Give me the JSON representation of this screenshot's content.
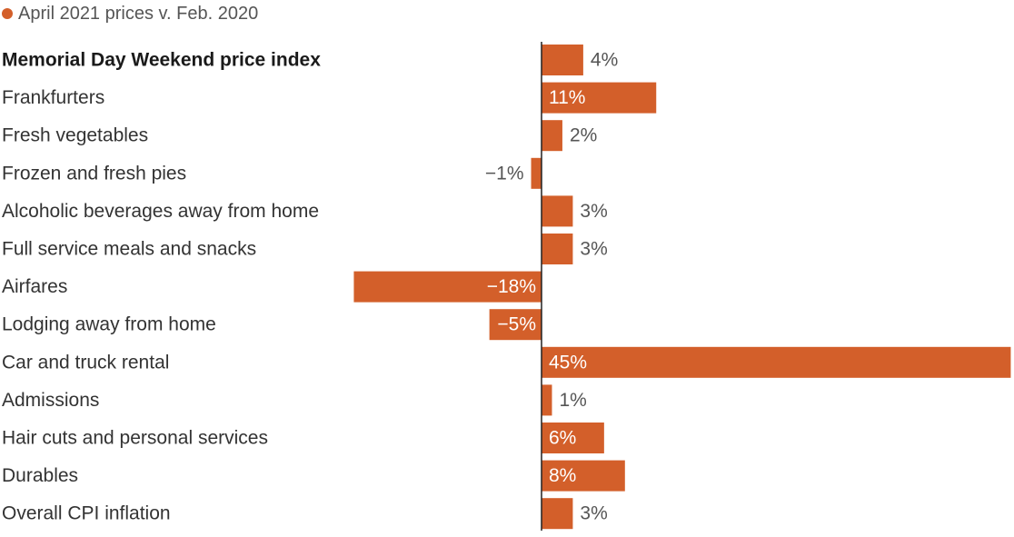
{
  "legend": {
    "label": "April 2021 prices v. Feb. 2020",
    "color": "#d35f2a"
  },
  "chart_data": {
    "type": "bar",
    "orientation": "horizontal",
    "bar_color": "#d35f2a",
    "categories": [
      "Memorial Day Weekend price index",
      "Frankfurters",
      "Fresh vegetables",
      "Frozen and fresh pies",
      "Alcoholic beverages away from home",
      "Full service meals and snacks",
      "Airfares",
      "Lodging away from home",
      "Car and truck rental",
      "Admissions",
      "Hair cuts and personal services",
      "Durables",
      "Overall CPI inflation"
    ],
    "values": [
      4,
      11,
      2,
      -1,
      3,
      3,
      -18,
      -5,
      45,
      1,
      6,
      8,
      3
    ],
    "value_labels": [
      "4%",
      "11%",
      "2%",
      "−1%",
      "3%",
      "3%",
      "−18%",
      "−5%",
      "45%",
      "1%",
      "6%",
      "8%",
      "3%"
    ],
    "bold_categories": [
      "Memorial Day Weekend price index"
    ],
    "xlim": [
      -18,
      45
    ],
    "grid": false
  }
}
